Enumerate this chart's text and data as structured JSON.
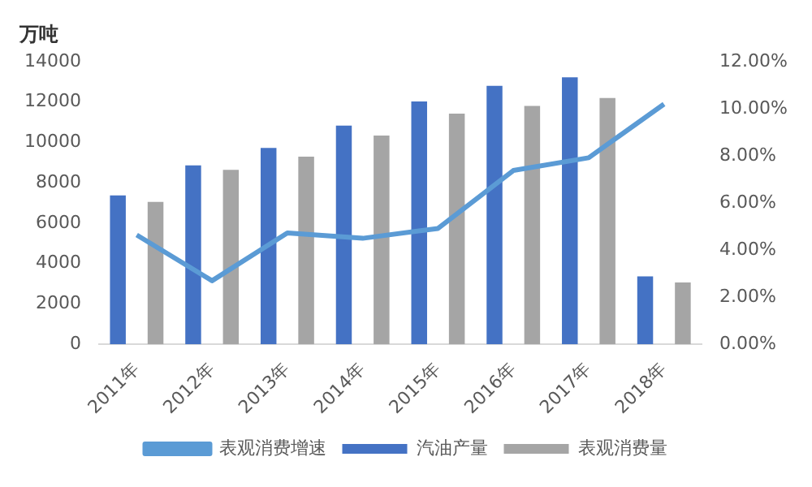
{
  "chart_data": {
    "type": "bar",
    "ylabel": "万吨",
    "categories": [
      "2011年",
      "2012年",
      "2013年",
      "2014年",
      "2015年",
      "2016年",
      "2017年",
      "2018年"
    ],
    "series": [
      {
        "name": "汽油产量",
        "color": "#4472c4",
        "values": [
          7380,
          8860,
          9730,
          10830,
          12030,
          12800,
          13230,
          3360
        ]
      },
      {
        "name": "表观消费量",
        "color": "#a5a5a5",
        "values": [
          7050,
          8640,
          9300,
          10340,
          11430,
          11810,
          12200,
          3060
        ]
      },
      {
        "name": "表观消费增速",
        "type": "line",
        "axis": "y2",
        "color": "#5b9bd5",
        "values": [
          4.64,
          2.7,
          4.73,
          4.5,
          4.92,
          7.38,
          7.92,
          10.2
        ]
      }
    ],
    "ylim": [
      0,
      14000
    ],
    "yticks": [
      0,
      2000,
      4000,
      6000,
      8000,
      10000,
      12000,
      14000
    ],
    "y2lim": [
      0,
      12
    ],
    "y2ticks": [
      {
        "value": 0,
        "label": "0.00%"
      },
      {
        "value": 2,
        "label": "2.00%"
      },
      {
        "value": 4,
        "label": "4.00%"
      },
      {
        "value": 6,
        "label": "6.00%"
      },
      {
        "value": 8,
        "label": "8.00%"
      },
      {
        "value": 10,
        "label": "10.00%"
      },
      {
        "value": 12,
        "label": "12.00%"
      }
    ],
    "grid": false,
    "legend": "bottom",
    "marker": "none"
  }
}
